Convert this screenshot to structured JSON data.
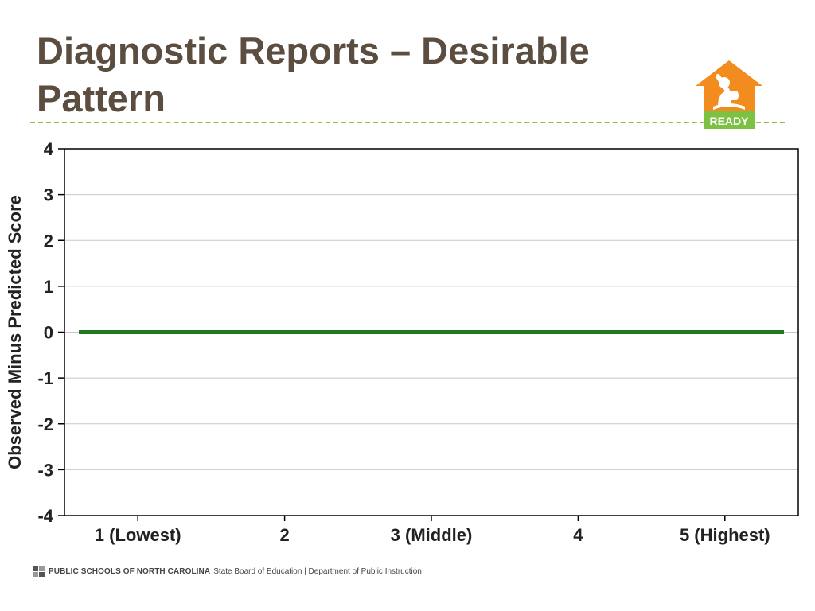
{
  "slide": {
    "title_line1": "Diagnostic Reports – Desirable",
    "title_line2": "Pattern"
  },
  "logo": {
    "icon": "ready-house-icon",
    "label": "READY",
    "colors": {
      "house": "#f28c1e",
      "banner": "#7cc142"
    }
  },
  "chart_data": {
    "type": "line",
    "title": "",
    "xlabel": "",
    "ylabel": "Observed Minus Predicted Score",
    "categories": [
      "1 (Lowest)",
      "2",
      "3 (Middle)",
      "4",
      "5 (Highest)"
    ],
    "series": [
      {
        "values": [
          0,
          0,
          0,
          0,
          0
        ],
        "color": "#1f7a1f"
      }
    ],
    "ylim": [
      -4,
      4
    ],
    "yticks": [
      4,
      3,
      2,
      1,
      0,
      -1,
      -2,
      -3,
      -4
    ],
    "grid": true,
    "gridColor": "#c8c8c8"
  },
  "footer": {
    "icon": "nc-dpi-emblem-icon",
    "org": "PUBLIC SCHOOLS OF NORTH CAROLINA",
    "sub": "State Board of Education | Department of Public Instruction"
  }
}
